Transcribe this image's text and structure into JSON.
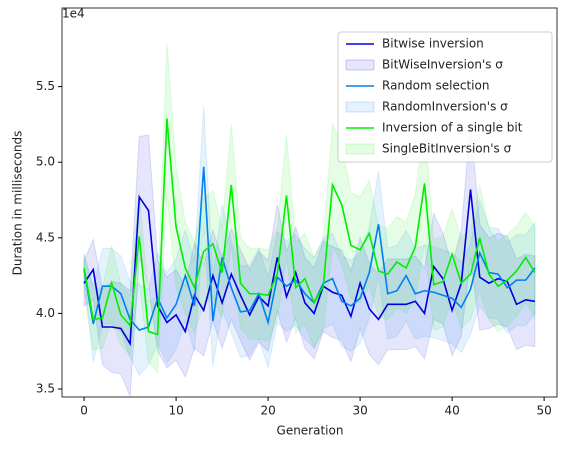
{
  "chart_data": {
    "type": "line",
    "xlabel": "Generation",
    "ylabel": "Duration in milliseconds",
    "y_offset_label": "1e4",
    "x": [
      0,
      1,
      2,
      3,
      4,
      5,
      6,
      7,
      8,
      9,
      10,
      11,
      12,
      13,
      14,
      15,
      16,
      17,
      18,
      19,
      20,
      21,
      22,
      23,
      24,
      25,
      26,
      27,
      28,
      29,
      30,
      31,
      32,
      33,
      34,
      35,
      36,
      37,
      38,
      39,
      40,
      41,
      42,
      43,
      44,
      45,
      46,
      47,
      48,
      49
    ],
    "xlim": [
      -2.4,
      51.4
    ],
    "xticks": [
      0,
      10,
      20,
      30,
      40,
      50
    ],
    "ylim": [
      3.447,
      6.02
    ],
    "yticks": [
      3.5,
      {
        "value": 4,
        "label": "4.0"
      },
      4.5,
      {
        "value": 5,
        "label": "5.0"
      },
      5.5
    ],
    "legend": "upper right",
    "series": [
      {
        "name": "Bitwise inversion",
        "color": "#0000dd",
        "values": [
          4.2,
          4.29,
          3.91,
          3.91,
          3.9,
          3.8,
          4.77,
          4.68,
          4.05,
          3.94,
          3.99,
          3.88,
          4.12,
          4.02,
          4.25,
          4.07,
          4.26,
          4.12,
          3.99,
          4.11,
          4.05,
          4.37,
          4.11,
          4.27,
          4.07,
          4.0,
          4.18,
          4.14,
          4.12,
          3.98,
          4.2,
          4.03,
          3.96,
          4.06,
          4.06,
          4.06,
          4.08,
          4.0,
          4.31,
          4.23,
          4.02,
          4.2,
          4.82,
          4.24,
          4.2,
          4.23,
          4.21,
          4.06,
          4.09,
          4.08
        ],
        "sigma_name": "BitWiseInversion's σ",
        "sigma": [
          0.15,
          0.2,
          0.25,
          0.3,
          0.3,
          0.35,
          0.4,
          0.5,
          0.3,
          0.3,
          0.3,
          0.3,
          0.35,
          0.3,
          0.3,
          0.3,
          0.3,
          0.3,
          0.3,
          0.3,
          0.3,
          0.35,
          0.3,
          0.3,
          0.3,
          0.3,
          0.3,
          0.3,
          0.3,
          0.3,
          0.3,
          0.3,
          0.3,
          0.3,
          0.3,
          0.3,
          0.3,
          0.3,
          0.35,
          0.3,
          0.3,
          0.35,
          0.45,
          0.35,
          0.3,
          0.3,
          0.3,
          0.3,
          0.3,
          0.3
        ]
      },
      {
        "name": "Random selection",
        "color": "#0080f0",
        "values": [
          4.29,
          3.93,
          4.18,
          4.18,
          4.13,
          3.96,
          3.89,
          3.91,
          4.1,
          3.97,
          4.06,
          4.25,
          4.05,
          4.97,
          3.95,
          4.37,
          4.17,
          4.01,
          4.02,
          4.13,
          3.94,
          4.24,
          4.18,
          4.22,
          4.13,
          4.07,
          4.2,
          4.23,
          4.08,
          4.05,
          4.1,
          4.27,
          4.59,
          4.13,
          4.15,
          4.25,
          4.13,
          4.15,
          4.14,
          4.12,
          4.1,
          4.04,
          4.16,
          4.4,
          4.27,
          4.26,
          4.17,
          4.22,
          4.22,
          4.3
        ],
        "sigma_name": "RandomInversion's σ",
        "sigma": [
          0.1,
          0.25,
          0.25,
          0.25,
          0.25,
          0.25,
          0.3,
          0.25,
          0.3,
          0.3,
          0.3,
          0.3,
          0.3,
          0.4,
          0.3,
          0.35,
          0.3,
          0.3,
          0.3,
          0.3,
          0.3,
          0.3,
          0.3,
          0.3,
          0.3,
          0.3,
          0.3,
          0.3,
          0.3,
          0.3,
          0.3,
          0.3,
          0.35,
          0.3,
          0.3,
          0.3,
          0.3,
          0.3,
          0.3,
          0.3,
          0.3,
          0.3,
          0.3,
          0.35,
          0.3,
          0.3,
          0.3,
          0.3,
          0.3,
          0.3
        ]
      },
      {
        "name": "Inversion of a single bit",
        "color": "#00ee00",
        "values": [
          4.3,
          3.96,
          3.97,
          4.2,
          3.99,
          3.92,
          4.51,
          3.88,
          3.86,
          5.29,
          4.57,
          4.3,
          4.17,
          4.41,
          4.46,
          4.27,
          4.85,
          4.2,
          4.13,
          4.13,
          4.12,
          4.26,
          4.78,
          4.17,
          4.23,
          4.07,
          4.18,
          4.85,
          4.72,
          4.45,
          4.42,
          4.53,
          4.28,
          4.26,
          4.34,
          4.3,
          4.44,
          4.86,
          4.19,
          4.21,
          4.39,
          4.2,
          4.26,
          4.5,
          4.26,
          4.18,
          4.22,
          4.28,
          4.37,
          4.27
        ],
        "sigma_name": "SingleBitInversion's σ",
        "sigma": [
          0.1,
          0.2,
          0.2,
          0.25,
          0.2,
          0.2,
          0.3,
          0.2,
          0.25,
          0.5,
          0.4,
          0.3,
          0.3,
          0.35,
          0.35,
          0.3,
          0.4,
          0.3,
          0.3,
          0.3,
          0.3,
          0.3,
          0.4,
          0.3,
          0.3,
          0.3,
          0.3,
          0.4,
          0.4,
          0.35,
          0.35,
          0.35,
          0.3,
          0.3,
          0.3,
          0.3,
          0.35,
          0.4,
          0.3,
          0.3,
          0.3,
          0.3,
          0.3,
          0.35,
          0.3,
          0.3,
          0.3,
          0.3,
          0.3,
          0.3
        ]
      }
    ]
  }
}
